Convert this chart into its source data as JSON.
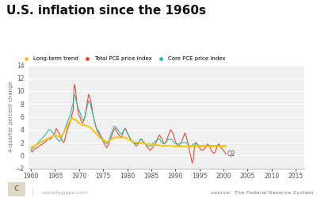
{
  "title": "U.S. inflation since the 1960s",
  "ylabel": "4-quarter percent change",
  "ylim": [
    -2,
    14
  ],
  "yticks": [
    -2,
    0,
    2,
    4,
    6,
    8,
    10,
    12,
    14
  ],
  "xlim": [
    1959.5,
    2016.8
  ],
  "xticks": [
    1960,
    1965,
    1970,
    1975,
    1980,
    1985,
    1990,
    1995,
    2000,
    2005,
    2010,
    2015
  ],
  "background_color": "#ffffff",
  "plot_bg_color": "#f0f0f0",
  "grid_color": "#ffffff",
  "title_fontsize": 11,
  "label_fontsize": 6,
  "footer_left": "cointelegraph.com",
  "footer_right": "The Federal Reserve System",
  "annotation": "Q2",
  "colors": {
    "long_term": "#f5c518",
    "total_pce": "#e8442a",
    "core_pce": "#2ab5a5"
  },
  "legend_labels": [
    "Long-term trend",
    "Total PCE price index",
    "Core PCE price index"
  ],
  "x_start": 1960.0,
  "x_step": 0.25,
  "total_pce": [
    0.85,
    0.5,
    0.7,
    1.0,
    1.1,
    1.2,
    1.3,
    1.5,
    1.6,
    1.7,
    1.8,
    2.0,
    2.1,
    2.3,
    2.5,
    2.6,
    2.5,
    2.7,
    2.9,
    3.1,
    3.6,
    4.2,
    3.9,
    3.6,
    3.2,
    2.7,
    2.3,
    2.0,
    2.3,
    3.2,
    3.8,
    4.4,
    4.8,
    5.4,
    6.2,
    7.0,
    11.0,
    10.5,
    8.5,
    7.0,
    6.2,
    5.8,
    5.3,
    5.0,
    5.5,
    6.2,
    7.2,
    8.5,
    9.5,
    9.0,
    8.2,
    7.0,
    6.0,
    5.2,
    4.5,
    3.8,
    3.5,
    3.2,
    2.8,
    2.5,
    2.2,
    1.8,
    1.5,
    1.2,
    1.5,
    2.0,
    2.5,
    3.0,
    3.5,
    4.0,
    4.2,
    3.8,
    3.5,
    3.2,
    3.0,
    2.8,
    3.2,
    3.8,
    4.2,
    4.0,
    3.5,
    3.2,
    2.8,
    2.5,
    2.2,
    2.0,
    1.8,
    1.5,
    1.5,
    1.8,
    2.2,
    2.5,
    2.5,
    2.2,
    2.0,
    1.8,
    1.5,
    1.2,
    1.0,
    0.8,
    1.0,
    1.2,
    1.5,
    1.8,
    2.0,
    2.5,
    3.0,
    3.2,
    2.8,
    2.5,
    2.0,
    1.8,
    2.0,
    2.5,
    3.0,
    3.5,
    4.0,
    3.8,
    3.5,
    2.8,
    2.2,
    1.8,
    1.5,
    1.5,
    1.8,
    2.0,
    2.5,
    3.0,
    3.5,
    3.0,
    2.2,
    1.5,
    0.5,
    -0.2,
    -1.2,
    -0.5,
    1.5,
    2.0,
    1.8,
    1.5,
    1.2,
    1.0,
    0.8,
    0.8,
    1.0,
    1.2,
    1.5,
    1.8,
    1.5,
    1.2,
    0.8,
    0.5,
    0.3,
    0.5,
    1.0,
    1.5,
    1.8,
    1.5,
    1.2,
    1.0,
    0.8,
    0.5,
    0.2
  ],
  "core_pce": [
    1.2,
    1.0,
    1.2,
    1.4,
    1.5,
    1.8,
    2.0,
    2.2,
    2.4,
    2.6,
    2.8,
    3.0,
    3.2,
    3.5,
    3.8,
    4.0,
    4.0,
    3.8,
    3.5,
    3.2,
    3.0,
    2.8,
    2.5,
    2.3,
    2.2,
    2.5,
    3.0,
    3.5,
    4.0,
    4.5,
    5.0,
    5.5,
    6.0,
    6.5,
    7.5,
    8.0,
    9.5,
    9.0,
    8.2,
    7.5,
    7.0,
    6.5,
    6.0,
    5.5,
    5.5,
    6.0,
    7.0,
    7.8,
    8.5,
    8.2,
    7.5,
    6.8,
    6.0,
    5.2,
    4.5,
    4.0,
    3.8,
    3.5,
    3.2,
    2.8,
    2.5,
    2.2,
    2.0,
    1.8,
    2.0,
    2.5,
    3.0,
    3.5,
    4.0,
    4.5,
    4.5,
    4.2,
    4.0,
    3.8,
    3.5,
    3.3,
    3.5,
    3.8,
    4.0,
    4.0,
    3.5,
    3.2,
    2.8,
    2.5,
    2.2,
    2.0,
    1.8,
    1.8,
    1.8,
    2.0,
    2.2,
    2.5,
    2.5,
    2.2,
    2.0,
    1.8,
    1.5,
    1.5,
    1.5,
    1.5,
    1.5,
    1.8,
    2.0,
    2.2,
    2.2,
    2.5,
    2.5,
    2.5,
    2.2,
    2.0,
    1.8,
    1.8,
    2.0,
    2.2,
    2.5,
    2.5,
    2.5,
    2.5,
    2.2,
    2.0,
    1.8,
    1.8,
    1.8,
    1.8,
    1.8,
    2.0,
    2.0,
    2.0,
    2.0,
    2.0,
    1.8,
    1.5,
    1.5,
    1.5,
    1.5,
    1.8,
    1.8,
    1.8,
    1.8,
    1.5,
    1.5,
    1.5,
    1.5,
    1.5,
    1.5,
    1.5,
    1.5,
    1.5,
    1.5,
    1.5,
    1.5,
    1.5,
    1.5,
    1.5,
    1.5,
    1.5,
    1.5,
    1.5,
    1.5,
    1.5,
    1.5,
    1.5,
    1.5
  ],
  "long_term": [
    1.2,
    1.3,
    1.4,
    1.5,
    1.6,
    1.7,
    1.8,
    1.9,
    2.0,
    2.1,
    2.2,
    2.3,
    2.4,
    2.5,
    2.6,
    2.7,
    2.8,
    2.9,
    3.0,
    3.1,
    3.2,
    3.1,
    3.0,
    2.9,
    2.8,
    3.0,
    3.2,
    3.5,
    3.8,
    4.2,
    4.5,
    4.8,
    5.2,
    5.5,
    5.8,
    5.7,
    5.6,
    5.5,
    5.4,
    5.2,
    5.0,
    4.9,
    4.8,
    4.7,
    4.7,
    4.7,
    4.6,
    4.5,
    4.5,
    4.4,
    4.2,
    4.0,
    3.8,
    3.6,
    3.4,
    3.2,
    3.0,
    2.8,
    2.6,
    2.5,
    2.4,
    2.3,
    2.2,
    2.1,
    2.2,
    2.3,
    2.4,
    2.5,
    2.6,
    2.7,
    2.8,
    2.8,
    2.8,
    2.8,
    2.8,
    2.8,
    2.8,
    2.8,
    2.8,
    2.7,
    2.6,
    2.5,
    2.4,
    2.3,
    2.2,
    2.1,
    2.0,
    2.0,
    2.0,
    2.0,
    2.0,
    2.0,
    1.9,
    1.9,
    1.9,
    1.8,
    1.8,
    1.8,
    1.8,
    1.8,
    1.7,
    1.7,
    1.7,
    1.7,
    1.6,
    1.6,
    1.6,
    1.6,
    1.5,
    1.5,
    1.5,
    1.5,
    1.5,
    1.5,
    1.5,
    1.5,
    1.5,
    1.5,
    1.4,
    1.4,
    1.4,
    1.4,
    1.4,
    1.4,
    1.4,
    1.4,
    1.4,
    1.4,
    1.4,
    1.4,
    1.4,
    1.4,
    1.4,
    1.4,
    1.4,
    1.4,
    1.4,
    1.4,
    1.4,
    1.4,
    1.4,
    1.4,
    1.4,
    1.4,
    1.4,
    1.4,
    1.4,
    1.4,
    1.4,
    1.4,
    1.4,
    1.4,
    1.4,
    1.4,
    1.4,
    1.4,
    1.4,
    1.4,
    1.4,
    1.4,
    1.4,
    1.4,
    1.4
  ]
}
